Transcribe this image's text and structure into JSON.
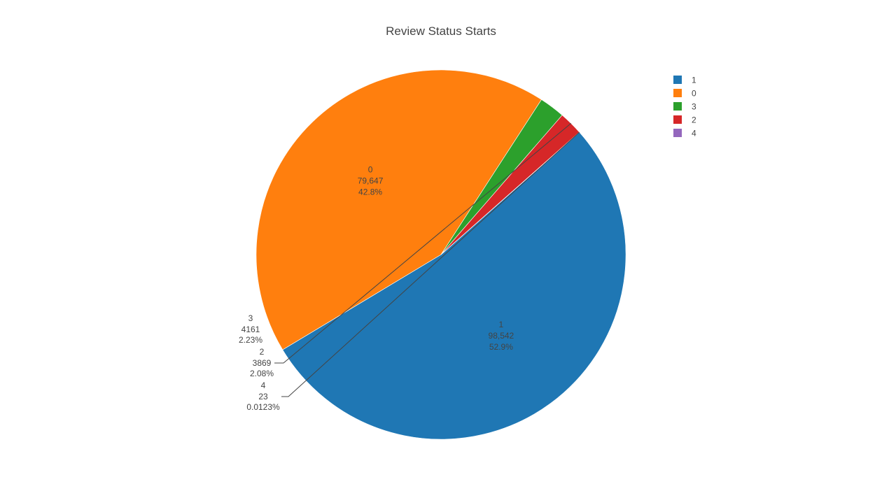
{
  "chart_data": {
    "type": "pie",
    "title": "Review Status Starts",
    "slices": [
      {
        "label": "1",
        "value": 98542,
        "value_text": "98,542",
        "percent_text": "52.9%",
        "color": "#1f77b4"
      },
      {
        "label": "0",
        "value": 79647,
        "value_text": "79,647",
        "percent_text": "42.8%",
        "color": "#ff7f0e"
      },
      {
        "label": "3",
        "value": 4161,
        "value_text": "4161",
        "percent_text": "2.23%",
        "color": "#2ca02c"
      },
      {
        "label": "2",
        "value": 3869,
        "value_text": "3869",
        "percent_text": "2.08%",
        "color": "#d62728"
      },
      {
        "label": "4",
        "value": 23,
        "value_text": "23",
        "percent_text": "0.0123%",
        "color": "#9467bd"
      }
    ],
    "legend": {
      "placement": "top-right",
      "entries": [
        {
          "label": "1",
          "color": "#1f77b4"
        },
        {
          "label": "0",
          "color": "#ff7f0e"
        },
        {
          "label": "3",
          "color": "#2ca02c"
        },
        {
          "label": "2",
          "color": "#d62728"
        },
        {
          "label": "4",
          "color": "#9467bd"
        }
      ]
    }
  }
}
